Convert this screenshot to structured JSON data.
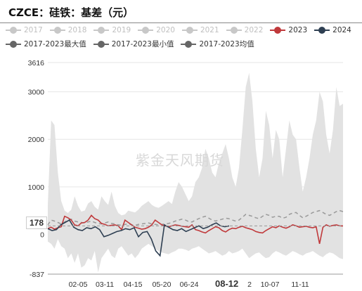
{
  "title": "CZCE：硅铁：基差（元）",
  "watermark": "紫金天风期货",
  "legend": [
    {
      "label": "2017",
      "color": "#c8c8c8",
      "active": false
    },
    {
      "label": "2018",
      "color": "#c8c8c8",
      "active": false
    },
    {
      "label": "2019",
      "color": "#c8c8c8",
      "active": false
    },
    {
      "label": "2020",
      "color": "#c8c8c8",
      "active": false
    },
    {
      "label": "2021",
      "color": "#c8c8c8",
      "active": false
    },
    {
      "label": "2022",
      "color": "#c8c8c8",
      "active": false
    },
    {
      "label": "2023",
      "color": "#c0393b",
      "active": true
    },
    {
      "label": "2024",
      "color": "#2e3f52",
      "active": true
    },
    {
      "label": "2017-2023最大值",
      "color": "#666666",
      "active": true
    },
    {
      "label": "2017-2023最小值",
      "color": "#666666",
      "active": true
    },
    {
      "label": "2017-2023均值",
      "color": "#666666",
      "active": true
    }
  ],
  "axis_pointer": {
    "y_value": "178",
    "x_value": "08-12"
  },
  "chart_data": {
    "type": "line",
    "title": "CZCE：硅铁：基差（元）",
    "y_axis": {
      "min": -837,
      "max": 3616,
      "ticks": [
        -837,
        0,
        1000,
        2000,
        3000,
        3616
      ]
    },
    "x_axis": {
      "ticks": [
        "02-05",
        "03-11",
        "04-15",
        "05-20",
        "06-24",
        "08-12",
        "10-07",
        "11-11"
      ]
    },
    "grid": true,
    "series": [
      {
        "name": "2017-2023最大值",
        "color": "#e4e4e4",
        "values": [
          620,
          2400,
          2300,
          1300,
          700,
          500,
          450,
          520,
          800,
          600,
          480,
          500,
          650,
          700,
          580,
          520,
          800,
          700,
          620,
          900,
          600,
          450,
          400,
          420,
          500,
          480,
          460,
          520,
          600,
          650,
          700,
          620,
          580,
          560,
          600,
          650,
          700,
          640,
          900,
          1100,
          1000,
          850,
          700,
          800,
          1100,
          1200,
          1400,
          1800,
          1600,
          1300,
          1200,
          1500,
          1700,
          1900,
          1600,
          1200,
          1000,
          1400,
          2200,
          3100,
          3400,
          2800,
          1800,
          1200,
          1600,
          2600,
          2300,
          1600,
          2200,
          2000,
          1200,
          1800,
          2400,
          2100,
          2000,
          1400,
          900,
          1200,
          1600,
          2100,
          2400,
          3000,
          2800,
          2100,
          1700,
          2200,
          3100,
          2700,
          2750
        ]
      },
      {
        "name": "2017-2023最小值",
        "color": "#e4e4e4",
        "values": [
          -150,
          -200,
          -300,
          -100,
          -250,
          -300,
          -500,
          -400,
          -600,
          -400,
          -700,
          -650,
          -500,
          -550,
          -350,
          -800,
          -500,
          -400,
          -300,
          -450,
          -500,
          -300,
          -250,
          -350,
          -450,
          -400,
          -500,
          -420,
          -300,
          -250,
          -200,
          -250,
          -300,
          -350,
          -380,
          -400,
          -420,
          -380,
          -350,
          -300,
          -300,
          -320,
          -350,
          -300,
          -280,
          -250,
          -300,
          -350,
          -400,
          -380,
          -350,
          -400,
          -450,
          -420,
          -350,
          -400,
          -380,
          -350,
          -300,
          -400,
          -500,
          -450,
          -400,
          -380,
          -450,
          -500,
          -480,
          -400,
          -350,
          -380,
          -420,
          -450,
          -400,
          -350,
          -380,
          -420,
          -450,
          -400,
          -380,
          -350,
          -400,
          -450,
          -480,
          -420,
          -380,
          -400,
          -450,
          -500,
          -520
        ]
      },
      {
        "name": "2017-2023均值",
        "color": "#9a9a9a",
        "values": [
          200,
          300,
          280,
          250,
          220,
          260,
          300,
          320,
          280,
          260,
          250,
          240,
          260,
          280,
          250,
          230,
          220,
          240,
          260,
          230,
          220,
          200,
          190,
          210,
          220,
          200,
          190,
          210,
          220,
          230,
          240,
          220,
          210,
          200,
          210,
          220,
          230,
          250,
          280,
          300,
          320,
          300,
          270,
          260,
          300,
          330,
          360,
          380,
          340,
          300,
          280,
          300,
          320,
          340,
          330,
          300,
          280,
          300,
          360,
          420,
          400,
          380,
          350,
          330,
          380,
          420,
          400,
          360,
          380,
          380,
          340,
          360,
          420,
          450,
          460,
          400,
          350,
          380,
          420,
          460,
          480,
          500,
          460,
          420,
          400,
          440,
          480,
          500,
          480
        ]
      },
      {
        "name": "2023",
        "color": "#c0393b",
        "values": [
          120,
          150,
          110,
          140,
          160,
          380,
          350,
          300,
          200,
          180,
          240,
          250,
          300,
          400,
          330,
          300,
          230,
          210,
          180,
          190,
          200,
          180,
          100,
          300,
          250,
          200,
          150,
          130,
          110,
          120,
          150,
          200,
          300,
          250,
          200,
          180,
          160,
          180,
          200,
          190,
          170,
          160,
          150,
          200,
          100,
          80,
          50,
          30,
          80,
          120,
          160,
          140,
          80,
          50,
          100,
          130,
          120,
          150,
          170,
          140,
          120,
          100,
          60,
          40,
          30,
          80,
          120,
          160,
          140,
          180,
          150,
          130,
          160,
          200,
          180,
          150,
          160,
          170,
          150,
          140,
          160,
          -200,
          150,
          200,
          170,
          190,
          200,
          180,
          178
        ]
      },
      {
        "name": "2024",
        "color": "#2e3f52",
        "values": [
          120,
          80,
          100,
          200,
          250,
          300,
          150,
          100,
          80,
          140,
          120,
          160,
          100,
          -50,
          -20,
          20,
          60,
          80,
          120,
          100,
          140,
          -50,
          40,
          60,
          -100,
          -350,
          -450,
          200,
          150,
          100,
          80,
          120,
          60,
          100,
          140,
          180,
          120,
          150,
          200,
          240,
          180,
          160,
          178
        ]
      }
    ]
  }
}
